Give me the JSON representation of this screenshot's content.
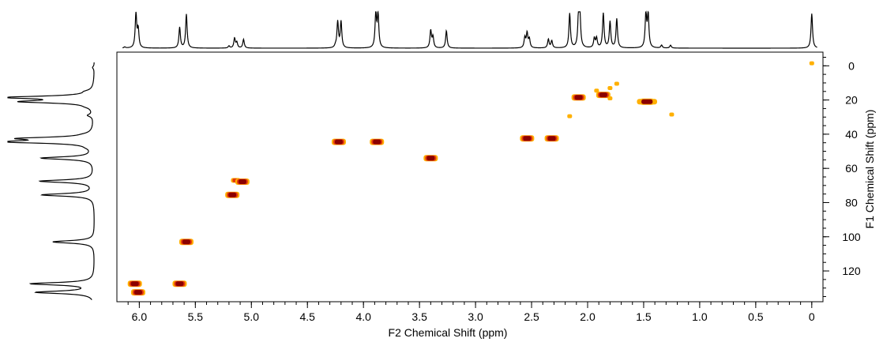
{
  "chart_data": {
    "type": "heatmap",
    "subtype": "2D NMR HSQC spectrum",
    "xlabel": "F2 Chemical Shift (ppm)",
    "ylabel": "F1 Chemical Shift (ppm)",
    "xlim": [
      6.2,
      -0.1
    ],
    "ylim": [
      -8,
      138
    ],
    "x_axis_direction": "reversed (high ppm on left)",
    "y_axis_direction": "increasing downward",
    "y_axis_side": "right",
    "grid": false,
    "x_ticks": [
      "6.0",
      "5.5",
      "5.0",
      "4.5",
      "4.0",
      "3.5",
      "3.0",
      "2.5",
      "2.0",
      "1.5",
      "1.0",
      "0.5",
      "0"
    ],
    "y_ticks": [
      "0",
      "20",
      "40",
      "60",
      "80",
      "100",
      "120"
    ],
    "x_tick_values": [
      6.0,
      5.5,
      5.0,
      4.5,
      4.0,
      3.5,
      3.0,
      2.5,
      2.0,
      1.5,
      1.0,
      0.5,
      0
    ],
    "y_tick_values": [
      0,
      20,
      40,
      60,
      80,
      100,
      120
    ],
    "colors": {
      "strong": "#8b0000",
      "medium": "#e43a0c",
      "weak": "#ffb000",
      "line": "#000000"
    },
    "cross_peaks": [
      {
        "x": 6.04,
        "y": 127.5,
        "intensity": "strong"
      },
      {
        "x": 6.01,
        "y": 132.5,
        "intensity": "strong"
      },
      {
        "x": 5.64,
        "y": 127.5,
        "intensity": "strong"
      },
      {
        "x": 5.58,
        "y": 103.0,
        "intensity": "strong"
      },
      {
        "x": 5.17,
        "y": 75.5,
        "intensity": "strong"
      },
      {
        "x": 5.14,
        "y": 67.0,
        "intensity": "medium"
      },
      {
        "x": 5.08,
        "y": 67.8,
        "intensity": "strong"
      },
      {
        "x": 4.22,
        "y": 44.5,
        "intensity": "strong"
      },
      {
        "x": 3.88,
        "y": 44.5,
        "intensity": "strong"
      },
      {
        "x": 3.4,
        "y": 54.0,
        "intensity": "strong"
      },
      {
        "x": 2.54,
        "y": 42.5,
        "intensity": "strong"
      },
      {
        "x": 2.32,
        "y": 42.5,
        "intensity": "strong"
      },
      {
        "x": 2.16,
        "y": 29.5,
        "intensity": "weak"
      },
      {
        "x": 2.08,
        "y": 18.5,
        "intensity": "strong"
      },
      {
        "x": 1.92,
        "y": 14.5,
        "intensity": "weak"
      },
      {
        "x": 1.86,
        "y": 17.0,
        "intensity": "strong"
      },
      {
        "x": 1.8,
        "y": 13.0,
        "intensity": "weak"
      },
      {
        "x": 1.8,
        "y": 19.0,
        "intensity": "weak"
      },
      {
        "x": 1.74,
        "y": 10.5,
        "intensity": "weak"
      },
      {
        "x": 1.47,
        "y": 21.0,
        "intensity": "strong"
      },
      {
        "x": 1.25,
        "y": 28.5,
        "intensity": "weak"
      },
      {
        "x": 0.0,
        "y": -1.5,
        "intensity": "weak"
      }
    ],
    "f2_projection_peaks": [
      {
        "x": 6.13,
        "h": 0.03
      },
      {
        "x": 6.03,
        "h": 0.95
      },
      {
        "x": 6.01,
        "h": 0.5
      },
      {
        "x": 5.64,
        "h": 0.57
      },
      {
        "x": 5.58,
        "h": 0.93
      },
      {
        "x": 5.2,
        "h": 0.06
      },
      {
        "x": 5.15,
        "h": 0.27
      },
      {
        "x": 5.13,
        "h": 0.15
      },
      {
        "x": 5.07,
        "h": 0.24
      },
      {
        "x": 4.25,
        "h": 0.05
      },
      {
        "x": 4.23,
        "h": 0.72
      },
      {
        "x": 4.2,
        "h": 0.72
      },
      {
        "x": 3.89,
        "h": 0.93
      },
      {
        "x": 3.87,
        "h": 0.93
      },
      {
        "x": 3.4,
        "h": 0.48
      },
      {
        "x": 3.38,
        "h": 0.3
      },
      {
        "x": 3.26,
        "h": 0.48
      },
      {
        "x": 2.56,
        "h": 0.28
      },
      {
        "x": 2.54,
        "h": 0.4
      },
      {
        "x": 2.52,
        "h": 0.24
      },
      {
        "x": 2.35,
        "h": 0.24
      },
      {
        "x": 2.32,
        "h": 0.2
      },
      {
        "x": 2.16,
        "h": 0.95
      },
      {
        "x": 2.08,
        "h": 0.93
      },
      {
        "x": 2.07,
        "h": 0.93
      },
      {
        "x": 1.94,
        "h": 0.26
      },
      {
        "x": 1.92,
        "h": 0.26
      },
      {
        "x": 1.86,
        "h": 0.95
      },
      {
        "x": 1.8,
        "h": 0.72
      },
      {
        "x": 1.74,
        "h": 0.8
      },
      {
        "x": 1.48,
        "h": 0.93
      },
      {
        "x": 1.46,
        "h": 0.93
      },
      {
        "x": 1.34,
        "h": 0.08
      },
      {
        "x": 1.26,
        "h": 0.08
      },
      {
        "x": 0.0,
        "h": 0.95
      }
    ],
    "f1_projection_peaks": [
      {
        "y": -5,
        "h": 0.02
      },
      {
        "y": 1,
        "h": 0.02
      },
      {
        "y": 15,
        "h": 0.05
      },
      {
        "y": 18.5,
        "h": 0.97
      },
      {
        "y": 21.0,
        "h": 0.77
      },
      {
        "y": 24,
        "h": 0.03
      },
      {
        "y": 29,
        "h": 0.06
      },
      {
        "y": 40,
        "h": 0.03
      },
      {
        "y": 42.5,
        "h": 0.75
      },
      {
        "y": 44.5,
        "h": 0.95
      },
      {
        "y": 48,
        "h": 0.02
      },
      {
        "y": 54.0,
        "h": 0.6
      },
      {
        "y": 67.5,
        "h": 0.62
      },
      {
        "y": 75.5,
        "h": 0.6
      },
      {
        "y": 103.0,
        "h": 0.48
      },
      {
        "y": 127.5,
        "h": 0.72
      },
      {
        "y": 132.5,
        "h": 0.66
      }
    ]
  }
}
